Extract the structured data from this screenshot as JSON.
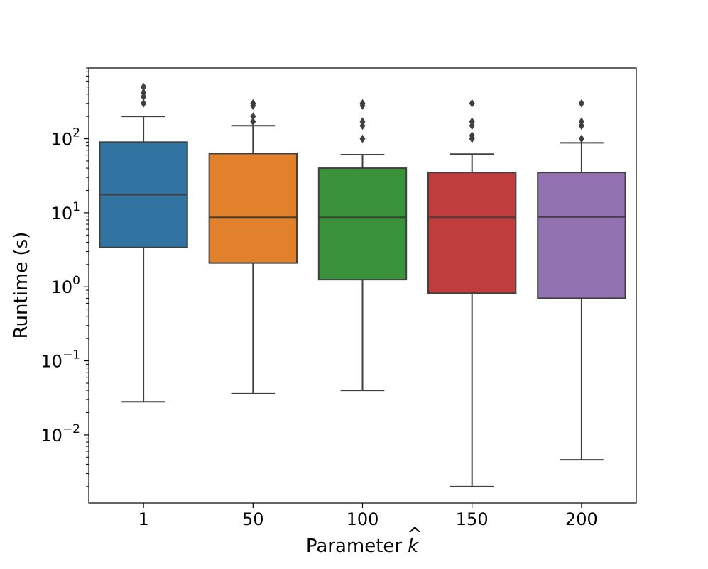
{
  "chart_data": {
    "type": "box",
    "title": "",
    "xlabel_prefix": "Parameter",
    "xlabel_symbol": "k",
    "xlabel_accent": "^",
    "ylabel": "Runtime (s)",
    "yscale": "log",
    "ylim": [
      0.0012,
      900
    ],
    "ytick_base": "10",
    "yticks": [
      {
        "value": 0.01,
        "exponent": "−2"
      },
      {
        "value": 0.1,
        "exponent": "−1"
      },
      {
        "value": 1,
        "exponent": "0"
      },
      {
        "value": 10,
        "exponent": "1"
      },
      {
        "value": 100,
        "exponent": "2"
      }
    ],
    "grid": false,
    "legend": "none",
    "categories": [
      "1",
      "50",
      "100",
      "150",
      "200"
    ],
    "boxes": [
      {
        "category": "1",
        "whislo": 0.028,
        "q1": 3.4,
        "median": 17.5,
        "q3": 90,
        "whishi": 200,
        "fliers": [
          300,
          370,
          420,
          500
        ],
        "color": "#3274a1"
      },
      {
        "category": "50",
        "whislo": 0.036,
        "q1": 2.1,
        "median": 8.7,
        "q3": 63,
        "whishi": 150,
        "fliers": [
          170,
          200,
          280,
          300
        ],
        "color": "#e1812c"
      },
      {
        "category": "100",
        "whislo": 0.04,
        "q1": 1.25,
        "median": 8.7,
        "q3": 40,
        "whishi": 61,
        "fliers": [
          100,
          150,
          170,
          280,
          300
        ],
        "color": "#3a923a"
      },
      {
        "category": "150",
        "whislo": 0.002,
        "q1": 0.82,
        "median": 8.7,
        "q3": 35,
        "whishi": 62,
        "fliers": [
          100,
          110,
          150,
          170,
          300
        ],
        "color": "#c03d3e"
      },
      {
        "category": "200",
        "whislo": 0.0046,
        "q1": 0.7,
        "median": 8.8,
        "q3": 35,
        "whishi": 88,
        "fliers": [
          100,
          150,
          170,
          300
        ],
        "color": "#9372b2"
      }
    ],
    "line_color": "#3f3f3f"
  }
}
